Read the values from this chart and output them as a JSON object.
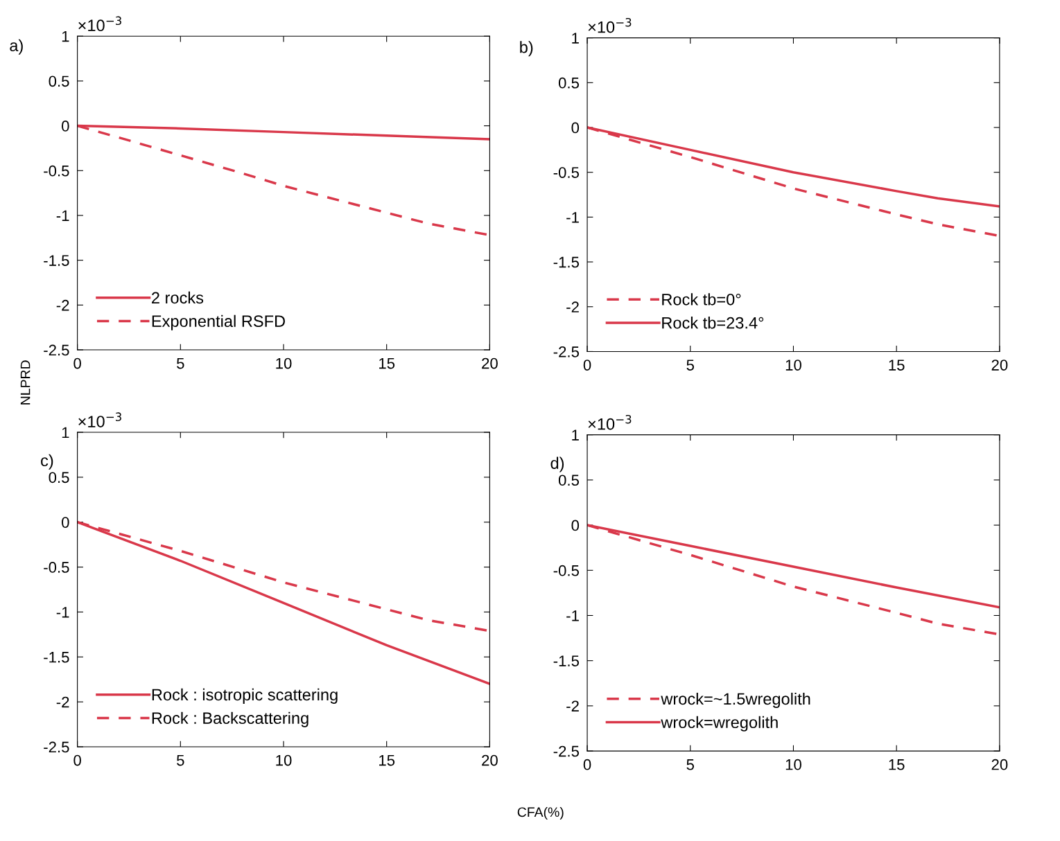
{
  "chart_data": [
    {
      "type": "line",
      "ylabel": "NLPRD",
      "annotations": [
        "a)",
        "×10$^{−3}$"
      ],
      "xlim": [
        0,
        20
      ],
      "ylim": [
        -2.5,
        1
      ],
      "xticks": [
        0,
        5,
        10,
        15,
        20
      ],
      "yticks": [
        -2.5,
        -2,
        -1.5,
        -1,
        -0.5,
        0,
        0.5,
        1
      ],
      "grid": false,
      "legend": "bottom left",
      "series": [
        {
          "name": "2 rocks",
          "color": "#d9384a",
          "line_style": "solid",
          "x": [
            0,
            5,
            10,
            15,
            20
          ],
          "values": [
            0,
            -0.03,
            -0.07,
            -0.11,
            -0.15
          ]
        },
        {
          "name": "Exponential RSFD",
          "color": "#d9384a",
          "line_style": "dashed",
          "x": [
            0,
            2,
            5,
            8,
            10,
            12,
            15,
            17,
            20
          ],
          "values": [
            0,
            -0.13,
            -0.33,
            -0.53,
            -0.67,
            -0.79,
            -0.97,
            -1.09,
            -1.22
          ]
        }
      ]
    },
    {
      "type": "line",
      "annotations": [
        "b)",
        "×10$^{−3}$"
      ],
      "xlim": [
        0,
        20
      ],
      "ylim": [
        -2.5,
        1
      ],
      "xticks": [
        0,
        5,
        10,
        15,
        20
      ],
      "yticks": [
        -2.5,
        -2,
        -1.5,
        -1,
        -0.5,
        0,
        0.5,
        1
      ],
      "grid": false,
      "legend": "bottom left",
      "series": [
        {
          "name": "Rock tb=0°",
          "color": "#d9384a",
          "line_style": "dashed",
          "x": [
            0,
            5,
            10,
            15,
            17,
            20
          ],
          "values": [
            0,
            -0.33,
            -0.68,
            -0.97,
            -1.08,
            -1.21
          ]
        },
        {
          "name": "Rock tb=23.4°",
          "color": "#d9384a",
          "line_style": "solid",
          "x": [
            0,
            5,
            10,
            15,
            17,
            20
          ],
          "values": [
            0,
            -0.25,
            -0.5,
            -0.71,
            -0.79,
            -0.88
          ]
        }
      ]
    },
    {
      "type": "line",
      "xlabel": "CFA(%)",
      "annotations": [
        "c)",
        "×10$^{−3}$"
      ],
      "xlim": [
        0,
        20
      ],
      "ylim": [
        -2.5,
        1
      ],
      "xticks": [
        0,
        5,
        10,
        15,
        20
      ],
      "yticks": [
        -2.5,
        -2,
        -1.5,
        -1,
        -0.5,
        0,
        0.5,
        1
      ],
      "grid": false,
      "legend": "bottom left",
      "series": [
        {
          "name": "Rock : isotropic scattering",
          "color": "#d9384a",
          "line_style": "solid",
          "x": [
            0,
            5,
            10,
            15,
            20
          ],
          "values": [
            0,
            -0.43,
            -0.9,
            -1.37,
            -1.8
          ]
        },
        {
          "name": "Rock : Backscattering",
          "color": "#d9384a",
          "line_style": "dashed",
          "x": [
            0,
            5,
            10,
            15,
            17,
            20
          ],
          "values": [
            0,
            -0.32,
            -0.67,
            -0.97,
            -1.09,
            -1.21
          ]
        }
      ]
    },
    {
      "type": "line",
      "annotations": [
        "d)",
        "×10$^{−3}$"
      ],
      "xlim": [
        0,
        20
      ],
      "ylim": [
        -2.5,
        1
      ],
      "xticks": [
        0,
        5,
        10,
        15,
        20
      ],
      "yticks": [
        -2.5,
        -2,
        -1.5,
        -1,
        -0.5,
        0,
        0.5,
        1
      ],
      "grid": false,
      "legend": "bottom left",
      "series": [
        {
          "name": "wrock=~1.5wregolith",
          "color": "#d9384a",
          "line_style": "dashed",
          "x": [
            0,
            5,
            10,
            15,
            17,
            20
          ],
          "values": [
            0,
            -0.33,
            -0.68,
            -0.97,
            -1.09,
            -1.21
          ]
        },
        {
          "name": "wrock=wregolith",
          "color": "#d9384a",
          "line_style": "solid",
          "x": [
            0,
            5,
            10,
            15,
            20
          ],
          "values": [
            0,
            -0.23,
            -0.46,
            -0.69,
            -0.91
          ]
        }
      ]
    }
  ]
}
